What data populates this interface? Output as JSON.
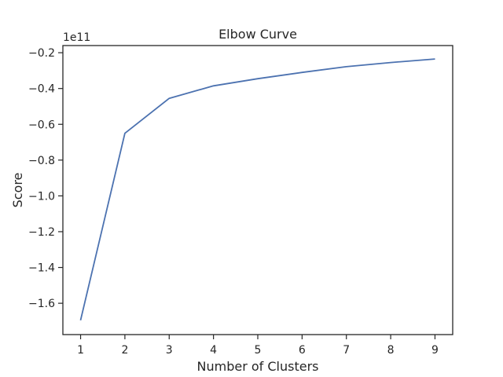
{
  "chart_data": {
    "type": "line",
    "title": "Elbow Curve",
    "xlabel": "Number of Clusters",
    "ylabel": "Score",
    "y_offset_label": "1e11",
    "x": [
      1,
      2,
      3,
      4,
      5,
      6,
      7,
      8,
      9
    ],
    "series": [
      {
        "values": [
          -1.695,
          -0.65,
          -0.455,
          -0.385,
          -0.345,
          -0.31,
          -0.278,
          -0.255,
          -0.235
        ],
        "color": "#4c72b0"
      }
    ],
    "xticks": [
      "1",
      "2",
      "3",
      "4",
      "5",
      "6",
      "7",
      "8",
      "9"
    ],
    "yticks": [
      "-0.2",
      "-0.4",
      "-0.6",
      "-0.8",
      "-1.0",
      "-1.2",
      "-1.4",
      "-1.6"
    ],
    "xlim": [
      0.6,
      9.4
    ],
    "ylim": [
      -1.775,
      -0.16
    ],
    "grid": false
  }
}
